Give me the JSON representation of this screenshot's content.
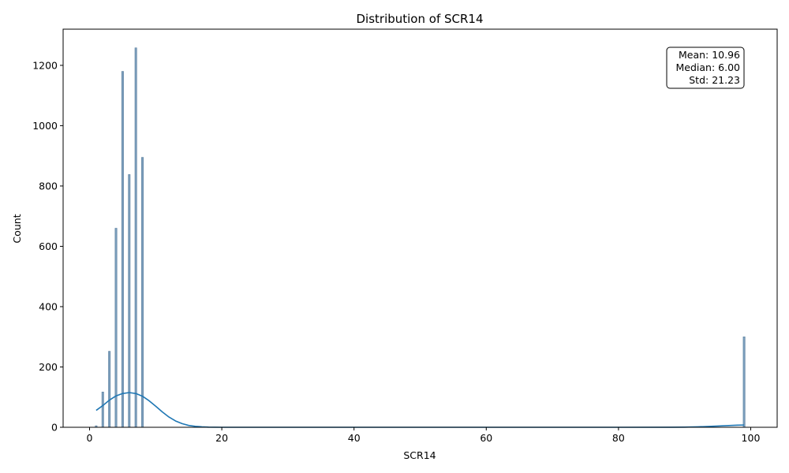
{
  "chart_data": {
    "type": "histogram",
    "title": "Distribution of SCR14",
    "xlabel": "SCR14",
    "ylabel": "Count",
    "xlim": [
      -4,
      104
    ],
    "ylim": [
      0,
      1320
    ],
    "xticks": [
      0,
      20,
      40,
      60,
      80,
      100
    ],
    "yticks": [
      0,
      200,
      400,
      600,
      800,
      1000,
      1200
    ],
    "bar_color": "#7c9fbd",
    "bar_edge_color": "#5b7f9e",
    "kde_color": "#1f77b4",
    "bin_width": 0.28,
    "bars": [
      {
        "x": 1,
        "count": 5
      },
      {
        "x": 2,
        "count": 117
      },
      {
        "x": 3,
        "count": 252
      },
      {
        "x": 4,
        "count": 660
      },
      {
        "x": 5,
        "count": 1180
      },
      {
        "x": 6,
        "count": 838
      },
      {
        "x": 7,
        "count": 1258
      },
      {
        "x": 8,
        "count": 895
      },
      {
        "x": 99,
        "count": 300
      }
    ],
    "kde": {
      "x": [
        1,
        2,
        3,
        4,
        5,
        6,
        7,
        8,
        9,
        10,
        11,
        12,
        13,
        14,
        15,
        16,
        17,
        18,
        20,
        25,
        40,
        60,
        80,
        88,
        90,
        92,
        94,
        96,
        98,
        99
      ],
      "y": [
        56,
        72,
        90,
        104,
        112,
        115,
        112,
        103,
        88,
        70,
        51,
        34,
        21,
        12,
        6,
        3,
        1.5,
        0.5,
        0,
        0,
        0,
        0,
        0,
        0.2,
        0.6,
        1.5,
        3,
        5,
        7,
        7.5
      ]
    },
    "stats": {
      "mean": "Mean: 10.96",
      "median": "Median: 6.00",
      "std": "Std: 21.23"
    },
    "stats_box_position": "top-right",
    "grid": false
  }
}
